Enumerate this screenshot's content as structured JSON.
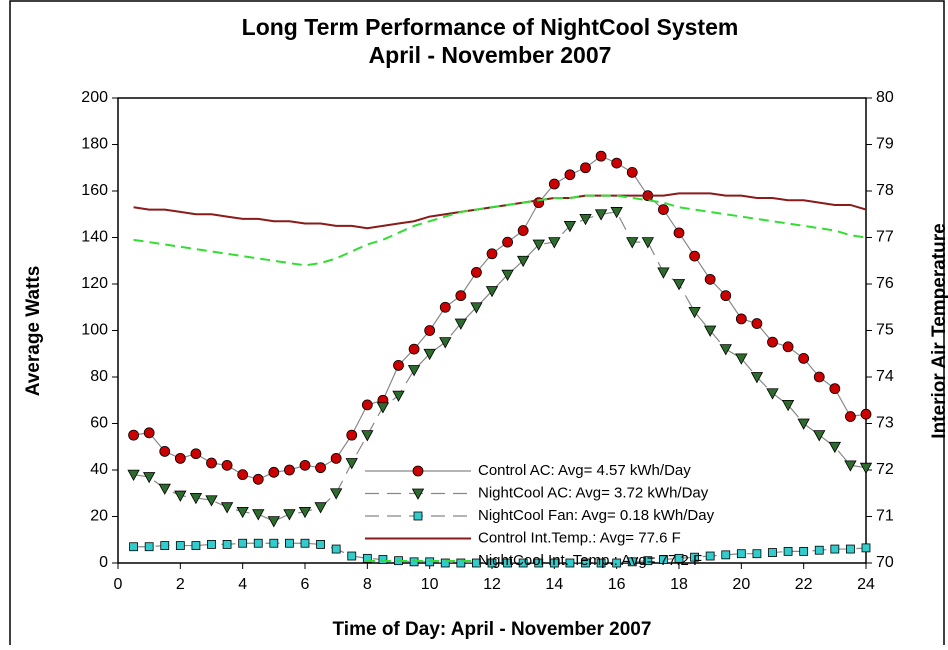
{
  "chart_data": {
    "type": "line",
    "title": "Long Term Performance of NightCool System",
    "subtitle": "April - November 2007",
    "x_label": "Time of Day: April - November 2007",
    "y_label": "Average Watts",
    "y2_label": "Interior Air Temperature",
    "x": [
      0.5,
      1,
      1.5,
      2,
      2.5,
      3,
      3.5,
      4,
      4.5,
      5,
      5.5,
      6,
      6.5,
      7,
      7.5,
      8,
      8.5,
      9,
      9.5,
      10,
      10.5,
      11,
      11.5,
      12,
      12.5,
      13,
      13.5,
      14,
      14.5,
      15,
      15.5,
      16,
      16.5,
      17,
      17.5,
      18,
      18.5,
      19,
      19.5,
      20,
      20.5,
      21,
      21.5,
      22,
      22.5,
      23,
      23.5,
      24
    ],
    "xlim": [
      0,
      24
    ],
    "xticks": [
      0,
      2,
      4,
      6,
      8,
      10,
      12,
      14,
      16,
      18,
      20,
      22,
      24
    ],
    "ylim": [
      0,
      200
    ],
    "yticks": [
      0,
      20,
      40,
      60,
      80,
      100,
      120,
      140,
      160,
      180,
      200
    ],
    "y2lim": [
      70,
      80
    ],
    "y2ticks": [
      70,
      71,
      72,
      73,
      74,
      75,
      76,
      77,
      78,
      79,
      80
    ],
    "legend_position": "lower center",
    "series": [
      {
        "name": "Control AC: Avg= 4.57 kWh/Day",
        "color": "#cc0000",
        "marker": "circle",
        "line_style": "solid",
        "line_color": "#888888",
        "values": [
          55,
          56,
          48,
          45,
          47,
          43,
          42,
          38,
          36,
          39,
          40,
          42,
          41,
          45,
          55,
          68,
          70,
          85,
          92,
          100,
          110,
          115,
          125,
          133,
          138,
          143,
          155,
          163,
          167,
          170,
          175,
          172,
          168,
          158,
          152,
          142,
          132,
          122,
          115,
          105,
          103,
          95,
          93,
          88,
          80,
          75,
          63,
          64
        ]
      },
      {
        "name": "NightCool AC: Avg= 3.72 kWh/Day",
        "color": "#2e6b2e",
        "marker": "triangle-down",
        "line_style": "dashed",
        "line_color": "#888888",
        "values": [
          38,
          37,
          32,
          29,
          28,
          27,
          24,
          22,
          21,
          18,
          21,
          22,
          24,
          30,
          43,
          55,
          67,
          72,
          83,
          90,
          95,
          103,
          110,
          117,
          124,
          130,
          137,
          138,
          145,
          148,
          150,
          151,
          138,
          138,
          125,
          120,
          108,
          100,
          92,
          88,
          80,
          73,
          68,
          60,
          55,
          50,
          42,
          41
        ]
      },
      {
        "name": "NightCool Fan: Avg= 0.18 kWh/Day",
        "color": "#33cccc",
        "marker": "square",
        "line_style": "dashed",
        "line_color": "#888888",
        "values": [
          7,
          7,
          7.5,
          7.5,
          7.5,
          8,
          8,
          8.5,
          8.5,
          8.5,
          8.5,
          8.5,
          8,
          6,
          3,
          2,
          1.5,
          1,
          0.5,
          0.5,
          0,
          0,
          0,
          0,
          0,
          0,
          0,
          0,
          0,
          0,
          0,
          0,
          0.5,
          1,
          1.5,
          2,
          2.5,
          3,
          3.5,
          4,
          4,
          4.5,
          5,
          5,
          5.5,
          6,
          6,
          6.5
        ]
      },
      {
        "name": "Control Int.Temp.: Avg= 77.6 F",
        "color": "#8b1a1a",
        "marker": "none",
        "line_style": "solid",
        "axis": "y2",
        "values": [
          77.65,
          77.6,
          77.6,
          77.55,
          77.5,
          77.5,
          77.45,
          77.4,
          77.4,
          77.35,
          77.35,
          77.3,
          77.3,
          77.25,
          77.25,
          77.2,
          77.25,
          77.3,
          77.35,
          77.45,
          77.5,
          77.55,
          77.6,
          77.65,
          77.7,
          77.75,
          77.8,
          77.85,
          77.85,
          77.9,
          77.9,
          77.9,
          77.9,
          77.9,
          77.9,
          77.95,
          77.95,
          77.95,
          77.9,
          77.9,
          77.85,
          77.85,
          77.8,
          77.8,
          77.75,
          77.7,
          77.7,
          77.6
        ]
      },
      {
        "name": "NightCool Int. Temp.: Avg= 77.2 F",
        "color": "#33dd33",
        "marker": "none",
        "line_style": "dashed",
        "axis": "y2",
        "values": [
          76.95,
          76.9,
          76.85,
          76.8,
          76.75,
          76.7,
          76.65,
          76.6,
          76.55,
          76.5,
          76.45,
          76.4,
          76.45,
          76.55,
          76.7,
          76.85,
          76.95,
          77.1,
          77.25,
          77.35,
          77.45,
          77.55,
          77.6,
          77.65,
          77.7,
          77.75,
          77.8,
          77.85,
          77.85,
          77.9,
          77.9,
          77.9,
          77.85,
          77.8,
          77.75,
          77.65,
          77.6,
          77.55,
          77.5,
          77.45,
          77.4,
          77.35,
          77.3,
          77.25,
          77.2,
          77.15,
          77.05,
          77.0
        ]
      }
    ]
  }
}
